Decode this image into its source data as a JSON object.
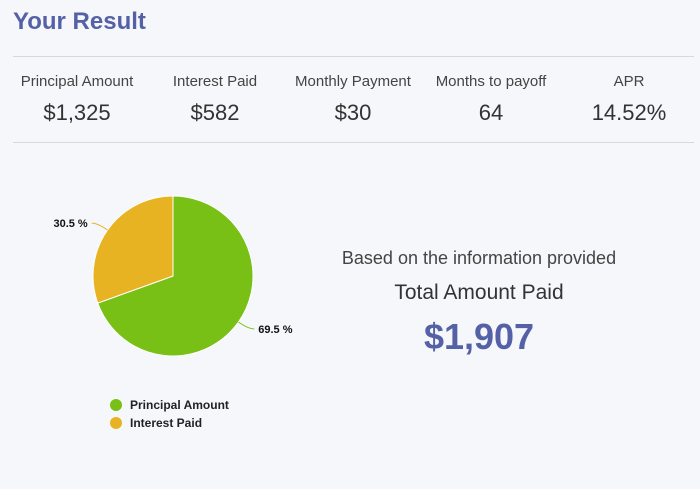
{
  "header": {
    "title": "Your Result"
  },
  "stats": [
    {
      "label": "Principal Amount",
      "value": "$1,325"
    },
    {
      "label": "Interest Paid",
      "value": "$582"
    },
    {
      "label": "Monthly Payment",
      "value": "$30"
    },
    {
      "label": "Months to payoff",
      "value": "64"
    },
    {
      "label": "APR",
      "value": "14.52%"
    }
  ],
  "summary": {
    "intro": "Based on the information provided",
    "label": "Total Amount Paid",
    "total": "$1,907"
  },
  "colors": {
    "accent": "#5561a6",
    "principal": "#78c015",
    "interest": "#e8b322"
  },
  "chart_data": {
    "type": "pie",
    "slices": [
      {
        "name": "Principal Amount",
        "value": 69.5,
        "label": "69.5 %",
        "color": "#78c015"
      },
      {
        "name": "Interest Paid",
        "value": 30.5,
        "label": "30.5 %",
        "color": "#e8b322"
      }
    ],
    "legend": {
      "placement": "bottom-left",
      "entries": [
        "Principal Amount",
        "Interest Paid"
      ]
    }
  }
}
